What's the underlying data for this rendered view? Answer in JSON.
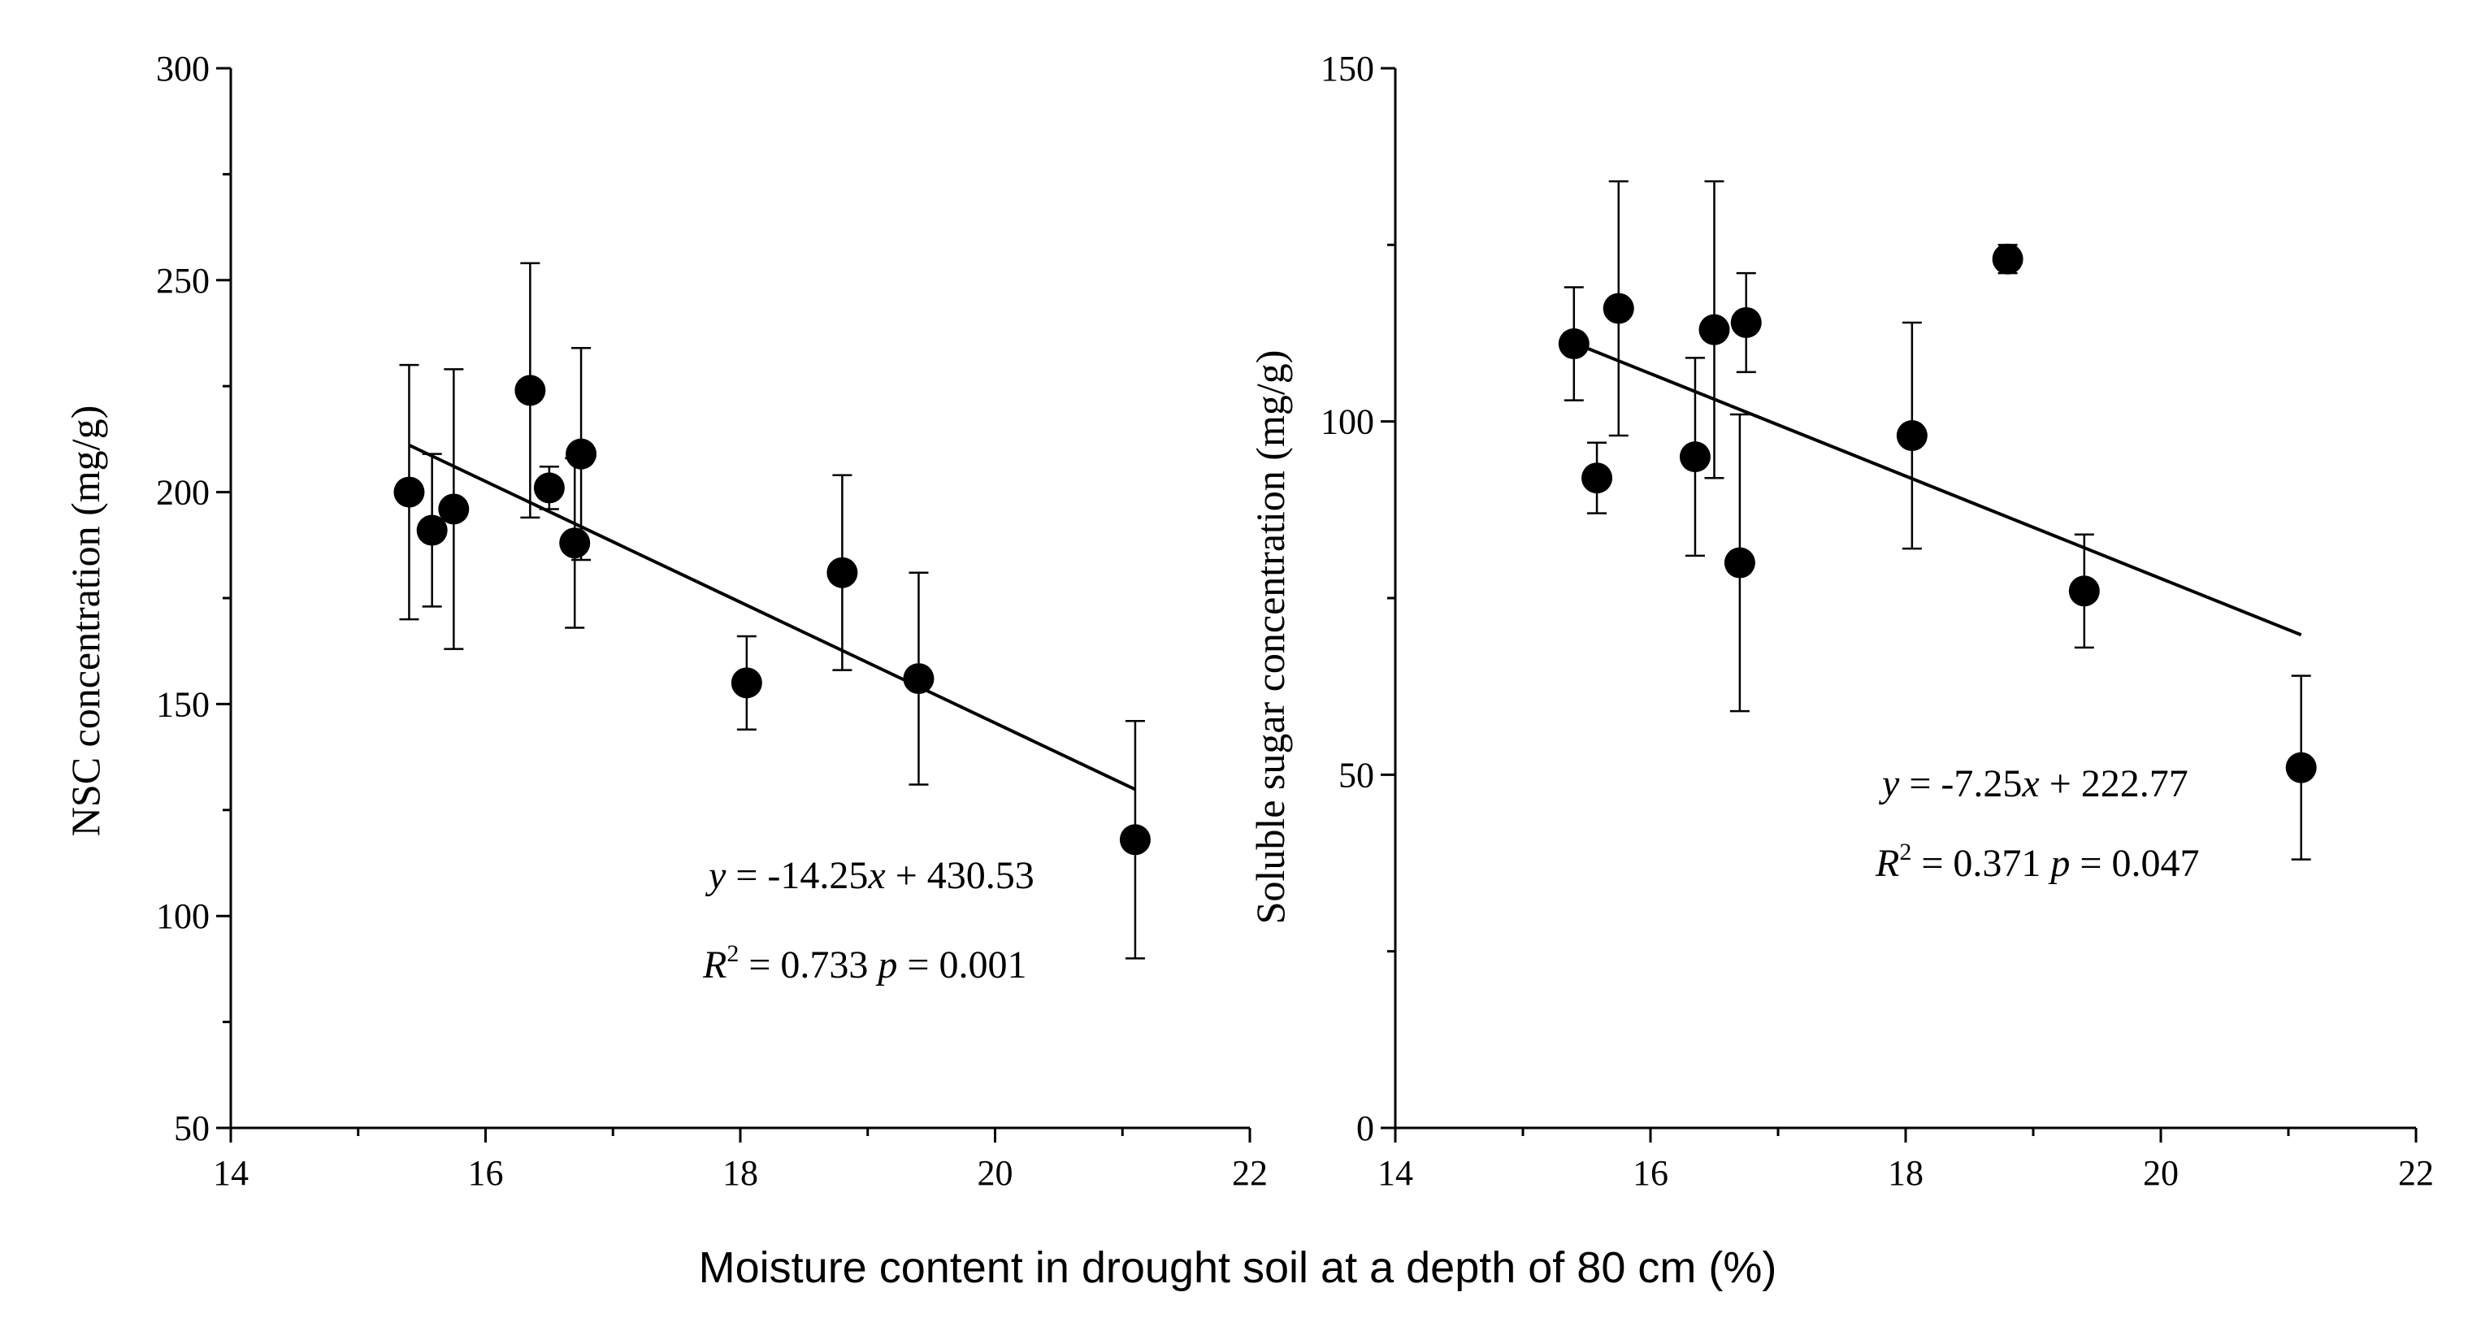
{
  "xlabel": "Moisture content in drought soil at a depth of 80 cm (%)",
  "colors": {
    "ink": "#000000",
    "background": "#ffffff"
  },
  "chart_data": [
    {
      "type": "scatter",
      "title": "",
      "ylabel": "NSC concentration (mg/g)",
      "xlim": [
        14,
        22
      ],
      "ylim": [
        50,
        300
      ],
      "xticks": [
        14,
        16,
        18,
        20,
        22
      ],
      "yticks": [
        50,
        100,
        150,
        200,
        250,
        300
      ],
      "points": [
        {
          "x": 15.4,
          "y": 200,
          "err": 30
        },
        {
          "x": 15.58,
          "y": 191,
          "err": 18
        },
        {
          "x": 15.75,
          "y": 196,
          "err": 33
        },
        {
          "x": 16.35,
          "y": 224,
          "err": 30
        },
        {
          "x": 16.5,
          "y": 201,
          "err": 5
        },
        {
          "x": 16.7,
          "y": 188,
          "err": 20
        },
        {
          "x": 16.75,
          "y": 209,
          "err": 25
        },
        {
          "x": 18.05,
          "y": 155,
          "err": 11
        },
        {
          "x": 18.8,
          "y": 181,
          "err": 23
        },
        {
          "x": 19.4,
          "y": 156,
          "err": 25
        },
        {
          "x": 21.1,
          "y": 118,
          "err": 28
        }
      ],
      "fit": {
        "slope": -14.25,
        "intercept": 430.53,
        "x_range": [
          15.4,
          21.1
        ]
      },
      "equation": {
        "y_symbol": "y",
        "eq_part1": " = -14.25",
        "x_symbol": "x",
        "eq_part2": " + 430.53",
        "r_symbol": "R",
        "r_sup": "2",
        "r_value": " = 0.733 ",
        "p_symbol": "p",
        "p_value": " = 0.001"
      }
    },
    {
      "type": "scatter",
      "title": "",
      "ylabel": "Soluble sugar concentration (mg/g)",
      "xlim": [
        14,
        22
      ],
      "ylim": [
        0,
        150
      ],
      "xticks": [
        14,
        16,
        18,
        20,
        22
      ],
      "yticks": [
        0,
        50,
        100,
        150
      ],
      "points": [
        {
          "x": 15.4,
          "y": 111,
          "err": 8
        },
        {
          "x": 15.58,
          "y": 92,
          "err": 5
        },
        {
          "x": 15.75,
          "y": 116,
          "err": 18
        },
        {
          "x": 16.35,
          "y": 95,
          "err": 14
        },
        {
          "x": 16.5,
          "y": 113,
          "err": 21
        },
        {
          "x": 16.7,
          "y": 80,
          "err": 21
        },
        {
          "x": 16.75,
          "y": 114,
          "err": 7
        },
        {
          "x": 18.05,
          "y": 98,
          "err": 16
        },
        {
          "x": 18.8,
          "y": 123,
          "err": 2
        },
        {
          "x": 19.4,
          "y": 76,
          "err": 8
        },
        {
          "x": 21.1,
          "y": 51,
          "err": 13
        }
      ],
      "fit": {
        "slope": -7.25,
        "intercept": 222.77,
        "x_range": [
          15.4,
          21.1
        ]
      },
      "equation": {
        "y_symbol": "y",
        "eq_part1": " = -7.25",
        "x_symbol": "x",
        "eq_part2": " + 222.77",
        "r_symbol": "R",
        "r_sup": "2",
        "r_value": " = 0.371 ",
        "p_symbol": "p",
        "p_value": " = 0.047"
      }
    }
  ]
}
